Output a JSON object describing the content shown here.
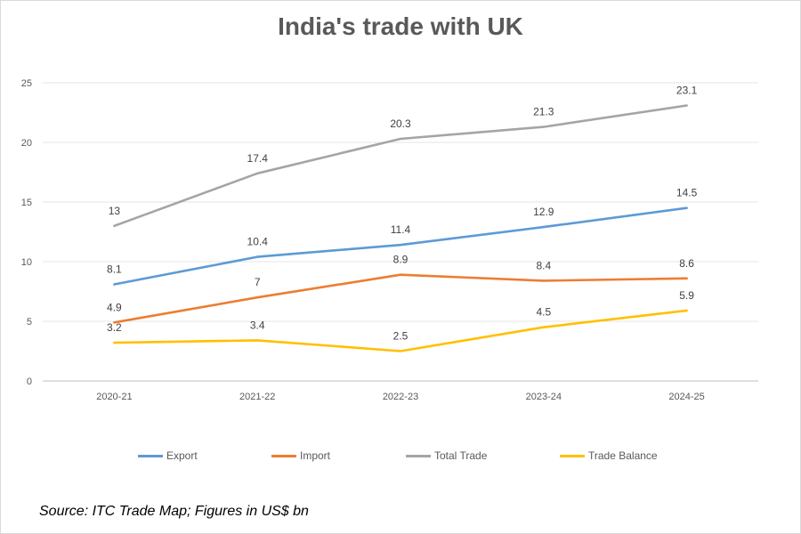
{
  "chart_data": {
    "type": "line",
    "title": "India's trade with UK",
    "categories": [
      "2020-21",
      "2021-22",
      "2022-23",
      "2023-24",
      "2024-25"
    ],
    "ylim": [
      0,
      25
    ],
    "yticks": [
      0,
      5,
      10,
      15,
      20,
      25
    ],
    "grid": true,
    "legend_position": "bottom",
    "series": [
      {
        "name": "Export",
        "color": "#5b9bd5",
        "values": [
          8.1,
          10.4,
          11.4,
          12.9,
          14.5
        ],
        "labels": [
          "8.1",
          "10.4",
          "11.4",
          "12.9",
          "14.5"
        ]
      },
      {
        "name": "Import",
        "color": "#ed7d31",
        "values": [
          4.9,
          7,
          8.9,
          8.4,
          8.6
        ],
        "labels": [
          "4.9",
          "7",
          "8.9",
          "8.4",
          "8.6"
        ]
      },
      {
        "name": "Total Trade",
        "color": "#a5a5a5",
        "values": [
          13,
          17.4,
          20.3,
          21.3,
          23.1
        ],
        "labels": [
          "13",
          "17.4",
          "20.3",
          "21.3",
          "23.1"
        ]
      },
      {
        "name": "Trade Balance",
        "color": "#ffc000",
        "values": [
          3.2,
          3.4,
          2.5,
          4.5,
          5.9
        ],
        "labels": [
          "3.2",
          "3.4",
          "2.5",
          "4.5",
          "5.9"
        ]
      }
    ]
  },
  "source_note": "Source: ITC Trade Map; Figures in US$ bn"
}
